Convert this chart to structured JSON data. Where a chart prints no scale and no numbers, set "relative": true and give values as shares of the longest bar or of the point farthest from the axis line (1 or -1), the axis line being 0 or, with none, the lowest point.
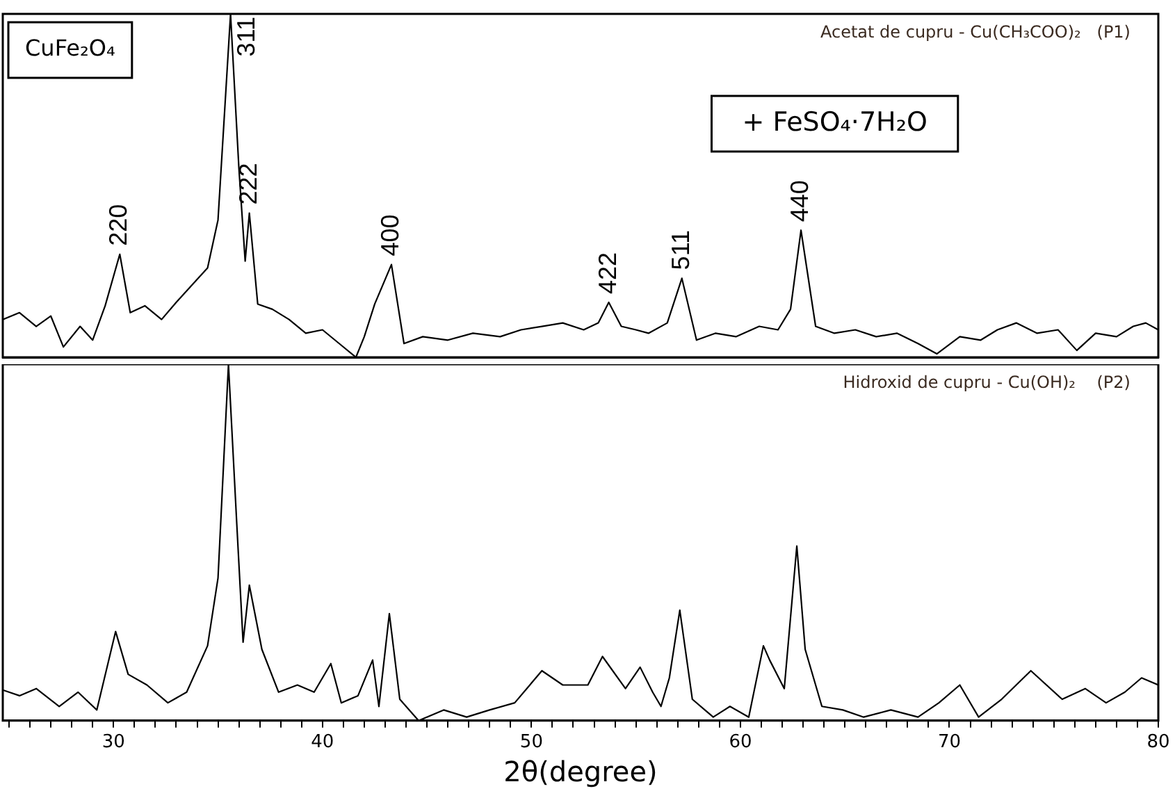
{
  "chart_data": [
    {
      "type": "line",
      "relative": true,
      "title": "Acetat de cupru - Cu(CH₃COO)₂   (P1)",
      "color": "#000000",
      "marker": "none",
      "tick_labels": false,
      "xlim": [
        24.7,
        80
      ],
      "x": [
        24.7,
        25.5,
        26.3,
        27.0,
        27.6,
        28.4,
        29.0,
        29.6,
        30.3,
        30.8,
        31.5,
        32.3,
        33.0,
        33.9,
        34.5,
        35.0,
        35.6,
        36.0,
        36.3,
        36.5,
        36.9,
        37.6,
        38.4,
        39.2,
        40.0,
        40.8,
        41.6,
        42.0,
        42.5,
        43.3,
        43.9,
        44.8,
        46.0,
        47.2,
        48.5,
        49.5,
        50.5,
        51.5,
        52.5,
        53.2,
        53.7,
        54.3,
        55.0,
        55.6,
        56.5,
        57.2,
        57.9,
        58.8,
        59.8,
        60.9,
        61.8,
        62.4,
        62.9,
        63.6,
        64.5,
        65.5,
        66.5,
        67.5,
        68.5,
        69.4,
        70.5,
        71.5,
        72.3,
        73.2,
        74.2,
        75.2,
        76.1,
        77.0,
        78.0,
        78.8,
        79.4,
        80.0
      ],
      "values": [
        0.11,
        0.13,
        0.09,
        0.12,
        0.03,
        0.09,
        0.05,
        0.15,
        0.3,
        0.13,
        0.15,
        0.11,
        0.16,
        0.22,
        0.26,
        0.4,
        1.0,
        0.55,
        0.28,
        0.42,
        0.155,
        0.14,
        0.11,
        0.07,
        0.08,
        0.04,
        0.0,
        0.06,
        0.155,
        0.27,
        0.04,
        0.06,
        0.05,
        0.07,
        0.06,
        0.08,
        0.09,
        0.1,
        0.08,
        0.1,
        0.16,
        0.09,
        0.08,
        0.07,
        0.1,
        0.23,
        0.05,
        0.07,
        0.06,
        0.09,
        0.08,
        0.14,
        0.37,
        0.09,
        0.07,
        0.08,
        0.06,
        0.07,
        0.04,
        0.01,
        0.06,
        0.05,
        0.08,
        0.1,
        0.07,
        0.08,
        0.02,
        0.07,
        0.06,
        0.09,
        0.1,
        0.08
      ],
      "annotations": [
        "CuFe₂O₄",
        "+ FeSO₄·7H₂O",
        {
          "text": "220",
          "x": 30.3,
          "y": 0.3
        },
        {
          "text": "311",
          "x": 35.6,
          "y": 1.0
        },
        {
          "text": "222",
          "x": 36.5,
          "y": 0.42
        },
        {
          "text": "400",
          "x": 43.3,
          "y": 0.27
        },
        {
          "text": "422",
          "x": 53.7,
          "y": 0.16
        },
        {
          "text": "511",
          "x": 57.2,
          "y": 0.23
        },
        {
          "text": "440",
          "x": 62.9,
          "y": 0.37
        }
      ]
    },
    {
      "type": "line",
      "relative": true,
      "title": "Hidroxid de cupru - Cu(OH)₂    (P2)",
      "color": "#000000",
      "marker": "none",
      "tick_labels": "x",
      "xlabel": "2θ(degree)",
      "xlim": [
        24.7,
        80
      ],
      "xticks": [
        {
          "value": 25,
          "label": null
        },
        {
          "value": 26,
          "label": null
        },
        {
          "value": 27,
          "label": null
        },
        {
          "value": 28,
          "label": null
        },
        {
          "value": 29,
          "label": null
        },
        30,
        {
          "value": 31,
          "label": null
        },
        {
          "value": 32,
          "label": null
        },
        {
          "value": 33,
          "label": null
        },
        {
          "value": 34,
          "label": null
        },
        {
          "value": 35,
          "label": null
        },
        {
          "value": 36,
          "label": null
        },
        {
          "value": 37,
          "label": null
        },
        {
          "value": 38,
          "label": null
        },
        {
          "value": 39,
          "label": null
        },
        40,
        {
          "value": 41,
          "label": null
        },
        {
          "value": 42,
          "label": null
        },
        {
          "value": 43,
          "label": null
        },
        {
          "value": 44,
          "label": null
        },
        {
          "value": 45,
          "label": null
        },
        {
          "value": 46,
          "label": null
        },
        {
          "value": 47,
          "label": null
        },
        {
          "value": 48,
          "label": null
        },
        {
          "value": 49,
          "label": null
        },
        50,
        {
          "value": 51,
          "label": null
        },
        {
          "value": 52,
          "label": null
        },
        {
          "value": 53,
          "label": null
        },
        {
          "value": 54,
          "label": null
        },
        {
          "value": 55,
          "label": null
        },
        {
          "value": 56,
          "label": null
        },
        {
          "value": 57,
          "label": null
        },
        {
          "value": 58,
          "label": null
        },
        {
          "value": 59,
          "label": null
        },
        60,
        {
          "value": 61,
          "label": null
        },
        {
          "value": 62,
          "label": null
        },
        {
          "value": 63,
          "label": null
        },
        {
          "value": 64,
          "label": null
        },
        {
          "value": 65,
          "label": null
        },
        {
          "value": 66,
          "label": null
        },
        {
          "value": 67,
          "label": null
        },
        {
          "value": 68,
          "label": null
        },
        {
          "value": 69,
          "label": null
        },
        70,
        {
          "value": 71,
          "label": null
        },
        {
          "value": 72,
          "label": null
        },
        {
          "value": 73,
          "label": null
        },
        {
          "value": 74,
          "label": null
        },
        {
          "value": 75,
          "label": null
        },
        {
          "value": 76,
          "label": null
        },
        {
          "value": 77,
          "label": null
        },
        {
          "value": 78,
          "label": null
        },
        {
          "value": 79,
          "label": null
        },
        80
      ],
      "x": [
        24.7,
        25.5,
        26.3,
        27.4,
        28.3,
        29.2,
        30.1,
        30.7,
        31.6,
        32.6,
        33.5,
        34.5,
        35.0,
        35.5,
        35.9,
        36.2,
        36.5,
        37.1,
        37.9,
        38.8,
        39.6,
        40.4,
        40.9,
        41.7,
        42.4,
        42.7,
        43.2,
        43.7,
        44.6,
        45.8,
        46.9,
        48.0,
        49.2,
        50.5,
        51.5,
        52.7,
        53.4,
        54.5,
        55.2,
        55.8,
        56.2,
        56.6,
        57.1,
        57.7,
        58.7,
        59.5,
        60.4,
        61.1,
        61.4,
        62.1,
        62.7,
        63.1,
        63.9,
        64.9,
        65.9,
        67.2,
        68.5,
        69.5,
        70.5,
        71.4,
        72.5,
        73.9,
        75.4,
        76.5,
        77.5,
        78.4,
        79.2,
        80.0
      ],
      "values": [
        0.086,
        0.07,
        0.09,
        0.04,
        0.08,
        0.03,
        0.25,
        0.13,
        0.1,
        0.05,
        0.08,
        0.21,
        0.4,
        1.0,
        0.55,
        0.22,
        0.38,
        0.2,
        0.08,
        0.1,
        0.08,
        0.16,
        0.05,
        0.07,
        0.17,
        0.04,
        0.3,
        0.06,
        0.0,
        0.03,
        0.01,
        0.03,
        0.05,
        0.14,
        0.1,
        0.1,
        0.18,
        0.09,
        0.15,
        0.08,
        0.04,
        0.12,
        0.31,
        0.06,
        0.01,
        0.04,
        0.01,
        0.21,
        0.17,
        0.09,
        0.49,
        0.2,
        0.04,
        0.03,
        0.01,
        0.03,
        0.01,
        0.05,
        0.1,
        0.01,
        0.06,
        0.14,
        0.06,
        0.09,
        0.05,
        0.08,
        0.12,
        0.1
      ]
    }
  ]
}
